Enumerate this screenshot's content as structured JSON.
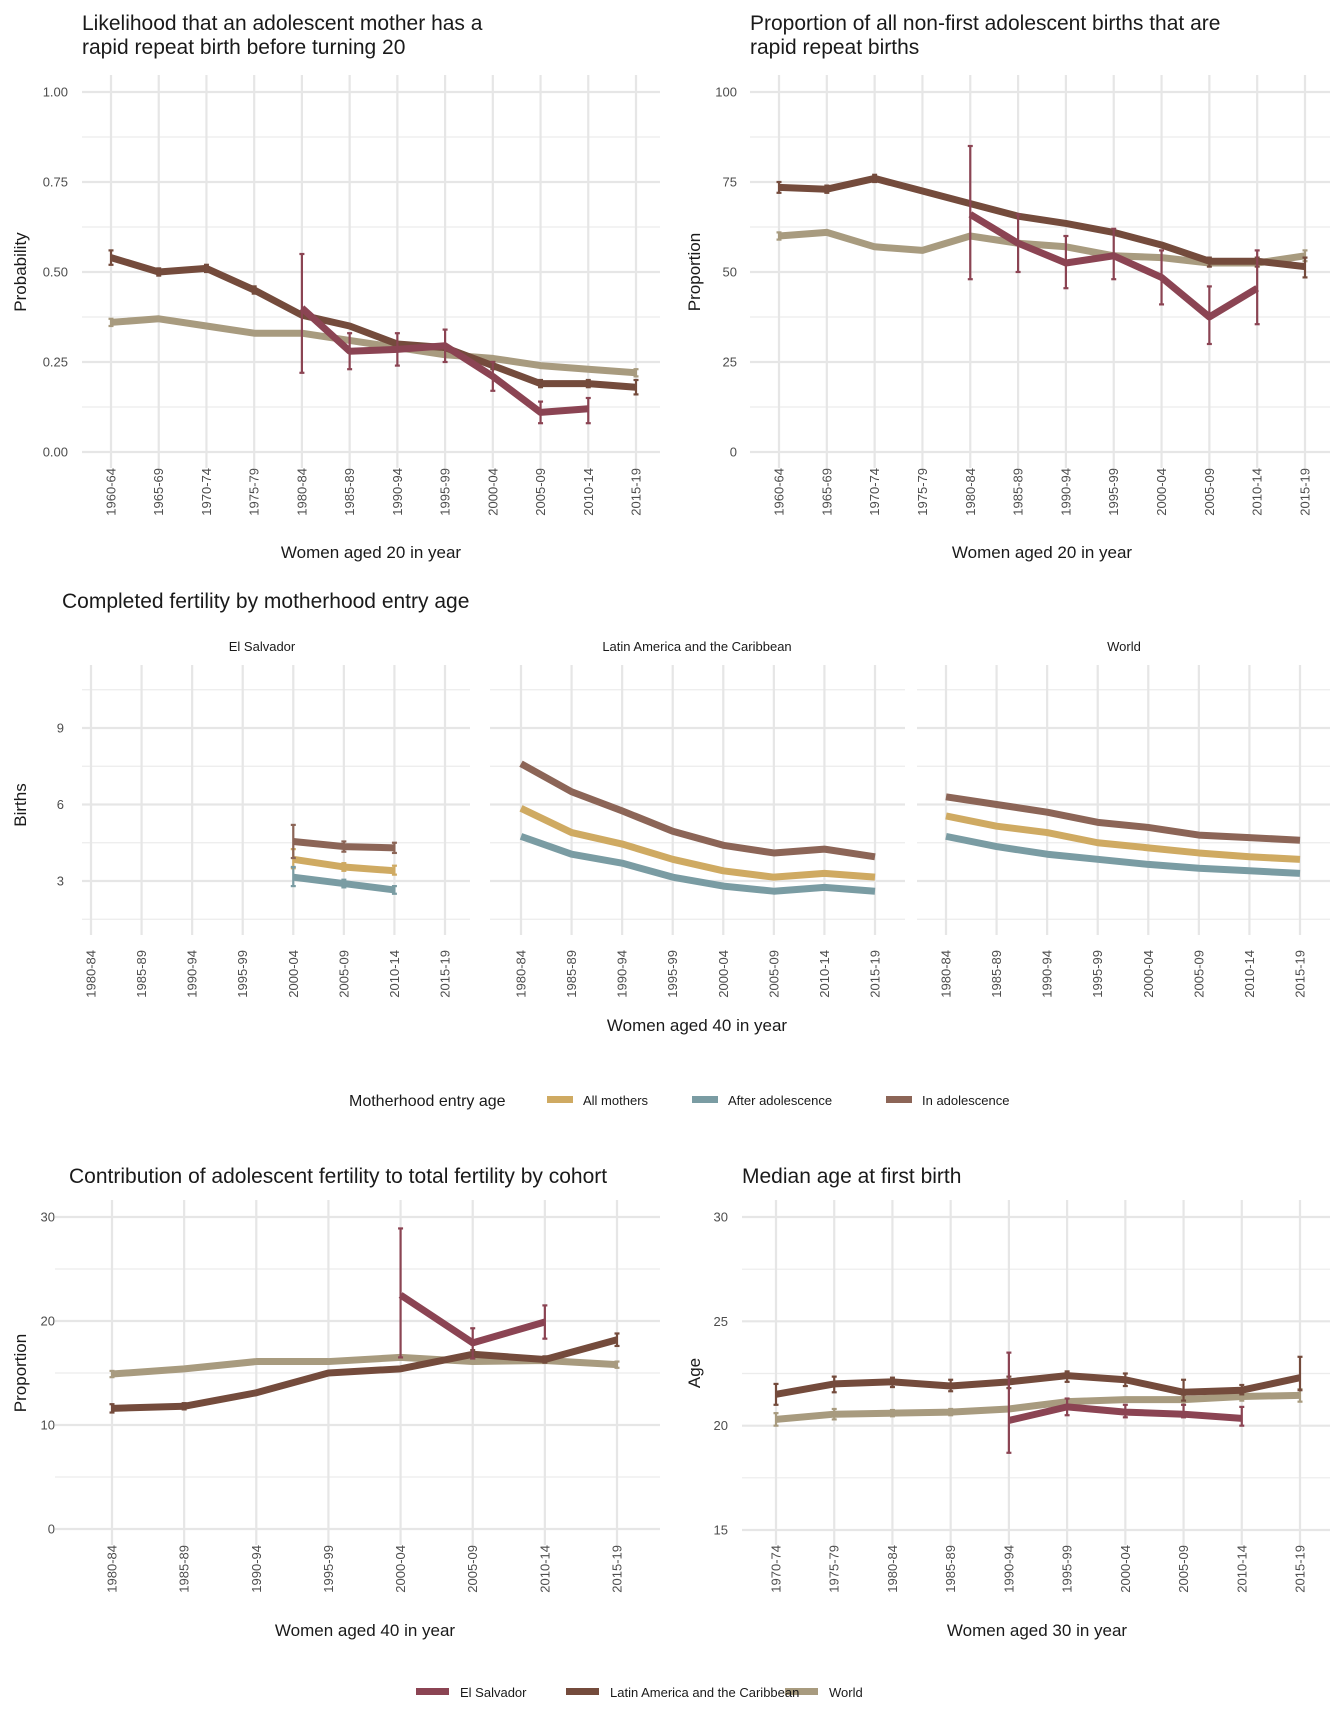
{
  "colors": {
    "el_salvador": "#8b4453",
    "latin_america": "#744b3c",
    "world": "#a89b7f",
    "all_mothers": "#cfaa62",
    "after_adolescence": "#7a9ca3",
    "in_adolescence": "#8c6557"
  },
  "chart_data": [
    {
      "id": "rapid-repeat-likelihood",
      "type": "line",
      "title": "Likelihood that an adolescent mother has a rapid repeat birth before turning 20",
      "title_lines": [
        "Likelihood that an adolescent mother has a",
        "rapid repeat birth before turning 20"
      ],
      "xlabel": "Women aged 20 in year",
      "ylabel": "Probability",
      "ylim": [
        0,
        1
      ],
      "yticks": [
        0,
        0.25,
        0.5,
        0.75,
        1.0
      ],
      "ytick_labels": [
        "0.00",
        "0.25",
        "0.50",
        "0.75",
        "1.00"
      ],
      "grid": true,
      "categories": [
        "1960-64",
        "1965-69",
        "1970-74",
        "1975-79",
        "1980-84",
        "1985-89",
        "1990-94",
        "1995-99",
        "2000-04",
        "2005-09",
        "2010-14",
        "2015-19"
      ],
      "series": [
        {
          "name": "World",
          "color_key": "world",
          "values": [
            0.36,
            0.37,
            0.35,
            0.33,
            0.33,
            0.31,
            0.29,
            0.27,
            0.26,
            0.24,
            0.23,
            0.22
          ],
          "lower": [
            0.35,
            null,
            null,
            null,
            null,
            null,
            null,
            null,
            null,
            null,
            null,
            0.21
          ],
          "upper": [
            0.37,
            null,
            null,
            null,
            null,
            null,
            null,
            null,
            null,
            null,
            null,
            0.23
          ]
        },
        {
          "name": "Latin America and the Caribbean",
          "color_key": "latin_america",
          "values": [
            0.54,
            0.5,
            0.51,
            0.45,
            0.38,
            0.35,
            0.3,
            0.29,
            0.24,
            0.19,
            0.19,
            0.18
          ],
          "lower": [
            0.52,
            0.49,
            0.5,
            0.44,
            null,
            null,
            null,
            null,
            0.23,
            0.18,
            0.18,
            0.16
          ],
          "upper": [
            0.56,
            0.51,
            0.52,
            0.46,
            null,
            null,
            null,
            null,
            0.25,
            0.2,
            0.2,
            0.2
          ]
        },
        {
          "name": "El Salvador",
          "color_key": "el_salvador",
          "values": [
            null,
            null,
            null,
            null,
            0.4,
            0.28,
            0.285,
            0.295,
            0.21,
            0.11,
            0.12,
            null
          ],
          "lower": [
            null,
            null,
            null,
            null,
            0.22,
            0.23,
            0.24,
            0.25,
            0.17,
            0.08,
            0.08,
            null
          ],
          "upper": [
            null,
            null,
            null,
            null,
            0.55,
            0.33,
            0.33,
            0.34,
            0.25,
            0.14,
            0.15,
            null
          ]
        }
      ]
    },
    {
      "id": "rapid-repeat-proportion",
      "type": "line",
      "title": "Proportion of all non-first adolescent births that are rapid repeat births",
      "title_lines": [
        "Proportion of all non-first adolescent births that are",
        "rapid repeat births"
      ],
      "xlabel": "Women aged 20 in year",
      "ylabel": "Proportion",
      "ylim": [
        0,
        100
      ],
      "yticks": [
        0,
        25,
        50,
        75,
        100
      ],
      "ytick_labels": [
        "0",
        "25",
        "50",
        "75",
        "100"
      ],
      "grid": true,
      "categories": [
        "1960-64",
        "1965-69",
        "1970-74",
        "1975-79",
        "1980-84",
        "1985-89",
        "1990-94",
        "1995-99",
        "2000-04",
        "2005-09",
        "2010-14",
        "2015-19"
      ],
      "series": [
        {
          "name": "World",
          "color_key": "world",
          "values": [
            60,
            61,
            57,
            56,
            60,
            58,
            57,
            54.5,
            54,
            52.5,
            52.5,
            54.5
          ],
          "lower": [
            59,
            null,
            null,
            null,
            null,
            null,
            null,
            null,
            null,
            null,
            null,
            53
          ],
          "upper": [
            61,
            null,
            null,
            null,
            null,
            null,
            null,
            null,
            null,
            null,
            null,
            56
          ]
        },
        {
          "name": "Latin America and the Caribbean",
          "color_key": "latin_america",
          "values": [
            73.5,
            73,
            76,
            72.5,
            69,
            65.5,
            63.5,
            61,
            57.5,
            53,
            53,
            51.5
          ],
          "lower": [
            72,
            72,
            75,
            null,
            null,
            null,
            null,
            null,
            null,
            51.5,
            51.5,
            48.5
          ],
          "upper": [
            75,
            74,
            77,
            null,
            null,
            null,
            null,
            null,
            null,
            54,
            54,
            54
          ]
        },
        {
          "name": "El Salvador",
          "color_key": "el_salvador",
          "values": [
            null,
            null,
            null,
            null,
            66,
            58,
            52.5,
            54.5,
            48.5,
            37.5,
            45.5,
            null
          ],
          "lower": [
            null,
            null,
            null,
            null,
            48,
            50,
            45.5,
            48,
            41,
            30,
            35.5,
            null
          ],
          "upper": [
            null,
            null,
            null,
            null,
            85,
            66,
            60,
            62,
            56,
            46,
            56,
            null
          ]
        }
      ]
    },
    {
      "id": "completed-fertility",
      "type": "line",
      "title": "Completed fertility by motherhood entry age",
      "xlabel": "Women aged 40 in year",
      "ylabel": "Births",
      "ylim": [
        0.9,
        11.5
      ],
      "yticks": [
        3,
        6,
        9
      ],
      "ytick_labels": [
        "3",
        "6",
        "9"
      ],
      "grid": true,
      "categories": [
        "1980-84",
        "1985-89",
        "1990-94",
        "1995-99",
        "2000-04",
        "2005-09",
        "2010-14",
        "2015-19"
      ],
      "legend": {
        "title": "Motherhood entry age",
        "position": "bottom",
        "entries": [
          {
            "label": "All mothers",
            "color_key": "all_mothers"
          },
          {
            "label": "After adolescence",
            "color_key": "after_adolescence"
          },
          {
            "label": "In adolescence",
            "color_key": "in_adolescence"
          }
        ]
      },
      "facets": [
        {
          "label": "El Salvador",
          "series": [
            {
              "name": "All mothers",
              "color_key": "all_mothers",
              "values": [
                null,
                null,
                null,
                null,
                3.85,
                3.55,
                3.4,
                null
              ],
              "lower": [
                null,
                null,
                null,
                null,
                3.5,
                3.4,
                3.25,
                null
              ],
              "upper": [
                null,
                null,
                null,
                null,
                4.25,
                3.7,
                3.6,
                null
              ]
            },
            {
              "name": "After adolescence",
              "color_key": "after_adolescence",
              "values": [
                null,
                null,
                null,
                null,
                3.15,
                2.9,
                2.65,
                null
              ],
              "lower": [
                null,
                null,
                null,
                null,
                2.8,
                2.75,
                2.5,
                null
              ],
              "upper": [
                null,
                null,
                null,
                null,
                3.55,
                3.05,
                2.8,
                null
              ]
            },
            {
              "name": "In adolescence",
              "color_key": "in_adolescence",
              "values": [
                null,
                null,
                null,
                null,
                4.55,
                4.35,
                4.3,
                null
              ],
              "lower": [
                null,
                null,
                null,
                null,
                3.9,
                4.15,
                4.1,
                null
              ],
              "upper": [
                null,
                null,
                null,
                null,
                5.2,
                4.55,
                4.5,
                null
              ]
            }
          ]
        },
        {
          "label": "Latin America and the Caribbean",
          "series": [
            {
              "name": "All mothers",
              "color_key": "all_mothers",
              "values": [
                5.85,
                4.9,
                4.45,
                3.85,
                3.4,
                3.15,
                3.3,
                3.15
              ]
            },
            {
              "name": "After adolescence",
              "color_key": "after_adolescence",
              "values": [
                4.75,
                4.05,
                3.7,
                3.15,
                2.8,
                2.6,
                2.75,
                2.6
              ]
            },
            {
              "name": "In adolescence",
              "color_key": "in_adolescence",
              "values": [
                7.6,
                6.5,
                5.75,
                4.95,
                4.4,
                4.1,
                4.25,
                3.95
              ]
            }
          ]
        },
        {
          "label": "World",
          "series": [
            {
              "name": "All mothers",
              "color_key": "all_mothers",
              "values": [
                5.55,
                5.15,
                4.9,
                4.5,
                4.3,
                4.1,
                3.95,
                3.85
              ]
            },
            {
              "name": "After adolescence",
              "color_key": "after_adolescence",
              "values": [
                4.75,
                4.35,
                4.05,
                3.85,
                3.65,
                3.5,
                3.4,
                3.3
              ]
            },
            {
              "name": "In adolescence",
              "color_key": "in_adolescence",
              "values": [
                6.3,
                6.0,
                5.7,
                5.3,
                5.1,
                4.8,
                4.7,
                4.6
              ]
            }
          ]
        }
      ]
    },
    {
      "id": "adolescent-contribution",
      "type": "line",
      "title": "Contribution of adolescent fertility to total fertility by cohort",
      "title_lines": [
        "Contribution of adolescent fertility to total fertility by cohort"
      ],
      "xlabel": "Women aged 40 in year",
      "ylabel": "Proportion",
      "ylim": [
        -1.5,
        31.5
      ],
      "yticks": [
        0,
        10,
        20,
        30
      ],
      "ytick_labels": [
        "0",
        "10",
        "20",
        "30"
      ],
      "grid": true,
      "categories": [
        "1980-84",
        "1985-89",
        "1990-94",
        "1995-99",
        "2000-04",
        "2005-09",
        "2010-14",
        "2015-19"
      ],
      "series": [
        {
          "name": "World",
          "color_key": "world",
          "values": [
            14.9,
            15.4,
            16.1,
            16.1,
            16.5,
            16.1,
            16.2,
            15.8
          ],
          "lower": [
            14.6,
            null,
            null,
            null,
            null,
            null,
            null,
            15.5
          ],
          "upper": [
            15.2,
            null,
            null,
            null,
            null,
            null,
            null,
            16.1
          ]
        },
        {
          "name": "Latin America and the Caribbean",
          "color_key": "latin_america",
          "values": [
            11.6,
            11.8,
            13.1,
            15.0,
            15.4,
            16.8,
            16.3,
            18.2
          ],
          "lower": [
            11.2,
            11.5,
            null,
            null,
            null,
            16.4,
            16.0,
            17.6
          ],
          "upper": [
            12.0,
            12.1,
            null,
            null,
            null,
            17.2,
            16.6,
            18.8
          ]
        },
        {
          "name": "El Salvador",
          "color_key": "el_salvador",
          "values": [
            null,
            null,
            null,
            null,
            22.5,
            17.9,
            19.9,
            null
          ],
          "lower": [
            null,
            null,
            null,
            null,
            16.5,
            16.4,
            18.3,
            null
          ],
          "upper": [
            null,
            null,
            null,
            null,
            28.9,
            19.3,
            21.5,
            null
          ]
        }
      ]
    },
    {
      "id": "median-age-first-birth",
      "type": "line",
      "title": "Median age at first birth",
      "title_lines": [
        "Median age at first birth"
      ],
      "xlabel": "Women aged 30 in year",
      "ylabel": "Age",
      "ylim": [
        14.25,
        30.75
      ],
      "yticks": [
        15,
        20,
        25,
        30
      ],
      "ytick_labels": [
        "15",
        "20",
        "25",
        "30"
      ],
      "grid": true,
      "categories": [
        "1970-74",
        "1975-79",
        "1980-84",
        "1985-89",
        "1990-94",
        "1995-99",
        "2000-04",
        "2005-09",
        "2010-14",
        "2015-19"
      ],
      "series": [
        {
          "name": "World",
          "color_key": "world",
          "values": [
            20.3,
            20.55,
            20.6,
            20.65,
            20.8,
            21.15,
            21.25,
            21.25,
            21.4,
            21.45
          ],
          "lower": [
            20.0,
            20.3,
            20.45,
            20.5,
            null,
            null,
            null,
            21.0,
            21.2,
            21.15
          ],
          "upper": [
            20.6,
            20.8,
            20.75,
            20.8,
            null,
            null,
            null,
            21.45,
            21.6,
            21.75
          ]
        },
        {
          "name": "Latin America and the Caribbean",
          "color_key": "latin_america",
          "values": [
            21.5,
            22.0,
            22.1,
            21.9,
            22.1,
            22.4,
            22.2,
            21.6,
            21.7,
            22.3
          ],
          "lower": [
            21.0,
            21.6,
            21.85,
            21.65,
            21.8,
            22.1,
            21.9,
            21.2,
            21.5,
            21.7
          ],
          "upper": [
            22.0,
            22.35,
            22.3,
            22.2,
            22.35,
            22.6,
            22.5,
            22.2,
            21.95,
            23.3
          ]
        },
        {
          "name": "El Salvador",
          "color_key": "el_salvador",
          "values": [
            null,
            null,
            null,
            null,
            20.25,
            20.9,
            20.65,
            20.55,
            20.35,
            null
          ],
          "lower": [
            null,
            null,
            null,
            null,
            18.7,
            20.5,
            20.4,
            20.4,
            20.0,
            null
          ],
          "upper": [
            null,
            null,
            null,
            null,
            23.5,
            21.3,
            21.0,
            21.0,
            20.9,
            null
          ]
        }
      ]
    }
  ],
  "bottom_legend": {
    "entries": [
      {
        "label": "El Salvador",
        "color_key": "el_salvador"
      },
      {
        "label": "Latin America and the Caribbean",
        "color_key": "latin_america"
      },
      {
        "label": "World",
        "color_key": "world"
      }
    ]
  }
}
